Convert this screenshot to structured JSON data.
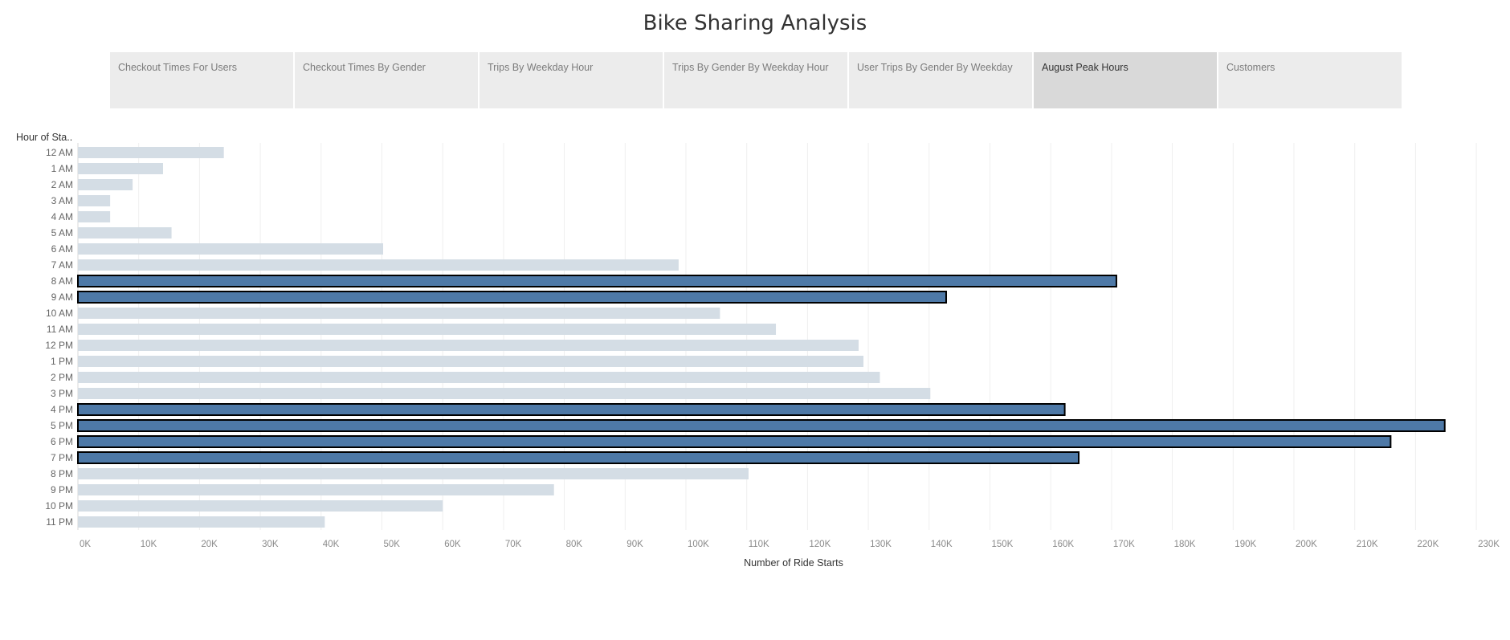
{
  "title": "Bike Sharing Analysis",
  "tabs": [
    {
      "label": "Checkout Times For Users",
      "active": false
    },
    {
      "label": "Checkout Times By Gender",
      "active": false
    },
    {
      "label": "Trips By Weekday Hour",
      "active": false
    },
    {
      "label": "Trips By Gender By Weekday Hour",
      "active": false
    },
    {
      "label": "User Trips By Gender By Weekday",
      "active": false
    },
    {
      "label": "August Peak Hours",
      "active": true
    },
    {
      "label": "Customers",
      "active": false
    }
  ],
  "colors": {
    "highlight": "#4e79a7",
    "base": "#d4dde5",
    "outline": "#000000"
  },
  "chart_data": {
    "type": "bar",
    "orientation": "horizontal",
    "ylabel": "Hour of Sta..",
    "xlabel": "Number of Ride Starts",
    "xlim": [
      0,
      230000
    ],
    "grid": true,
    "categories": [
      "12 AM",
      "1 AM",
      "2 AM",
      "3 AM",
      "4 AM",
      "5 AM",
      "6 AM",
      "7 AM",
      "8 AM",
      "9 AM",
      "10 AM",
      "11 AM",
      "12 PM",
      "1 PM",
      "2 PM",
      "3 PM",
      "4 PM",
      "5 PM",
      "6 PM",
      "7 PM",
      "8 PM",
      "9 PM",
      "10 PM",
      "11 PM"
    ],
    "values": [
      24000,
      14000,
      9000,
      5300,
      5300,
      15400,
      50200,
      98800,
      170800,
      142800,
      105600,
      114800,
      128400,
      129200,
      131900,
      140200,
      162300,
      224800,
      215900,
      164600,
      110300,
      78300,
      60000,
      40600
    ],
    "highlighted": [
      false,
      false,
      false,
      false,
      false,
      false,
      false,
      false,
      true,
      true,
      false,
      false,
      false,
      false,
      false,
      false,
      true,
      true,
      true,
      true,
      false,
      false,
      false,
      false
    ],
    "tick_values": [
      0,
      10000,
      20000,
      30000,
      40000,
      50000,
      60000,
      70000,
      80000,
      90000,
      100000,
      110000,
      120000,
      130000,
      140000,
      150000,
      160000,
      170000,
      180000,
      190000,
      200000,
      210000,
      220000,
      230000
    ],
    "tick_labels": [
      "0K",
      "10K",
      "20K",
      "30K",
      "40K",
      "50K",
      "60K",
      "70K",
      "80K",
      "90K",
      "100K",
      "110K",
      "120K",
      "130K",
      "140K",
      "150K",
      "160K",
      "170K",
      "180K",
      "190K",
      "200K",
      "210K",
      "220K",
      "230K"
    ]
  }
}
